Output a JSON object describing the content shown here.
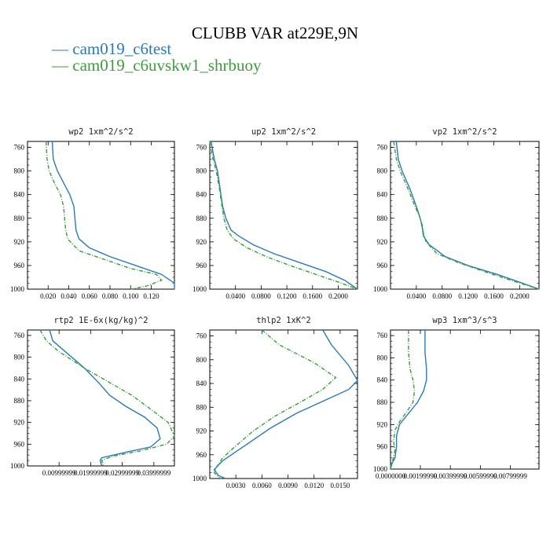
{
  "title": "CLUBB VAR at229E,9N",
  "legend": [
    {
      "label": "cam019_c6test",
      "color": "#2a7ab8"
    },
    {
      "label": "cam019_c6uvskw1_shrbuoy",
      "color": "#3a9e3a"
    }
  ],
  "chart_data": [
    {
      "type": "line",
      "title": "wp2   1xm^2/s^2",
      "y_axis": "pressure",
      "ylim": [
        1000,
        750
      ],
      "xlim": [
        0.0,
        0.1425
      ],
      "xticks": [
        0.02,
        0.04,
        0.06,
        0.08,
        0.1,
        0.12
      ],
      "xtick_labels": [
        "0.020",
        "0.040",
        "0.060",
        "0.080",
        "0.100",
        "0.120"
      ],
      "yticks": [
        760,
        800,
        840,
        880,
        920,
        960,
        1000
      ],
      "series": [
        {
          "name": "cam019_c6test",
          "points": [
            [
              0.024,
              750
            ],
            [
              0.025,
              780
            ],
            [
              0.029,
              800
            ],
            [
              0.035,
              820
            ],
            [
              0.041,
              840
            ],
            [
              0.045,
              860
            ],
            [
              0.046,
              880
            ],
            [
              0.047,
              900
            ],
            [
              0.05,
              915
            ],
            [
              0.06,
              930
            ],
            [
              0.08,
              945
            ],
            [
              0.105,
              960
            ],
            [
              0.13,
              975
            ],
            [
              0.1425,
              990
            ],
            [
              0.1425,
              1000
            ]
          ]
        },
        {
          "name": "cam019_c6uvskw1_shrbuoy",
          "points": [
            [
              0.018,
              750
            ],
            [
              0.019,
              780
            ],
            [
              0.021,
              800
            ],
            [
              0.026,
              820
            ],
            [
              0.032,
              840
            ],
            [
              0.035,
              860
            ],
            [
              0.036,
              880
            ],
            [
              0.037,
              900
            ],
            [
              0.039,
              915
            ],
            [
              0.05,
              935
            ],
            [
              0.075,
              950
            ],
            [
              0.1,
              965
            ],
            [
              0.125,
              975
            ],
            [
              0.13,
              985
            ],
            [
              0.115,
              995
            ],
            [
              0.1,
              1000
            ]
          ]
        }
      ]
    },
    {
      "type": "line",
      "title": "up2   1xm^2/s^2",
      "y_axis": "pressure",
      "ylim": [
        1000,
        750
      ],
      "xlim": [
        0.0,
        0.23
      ],
      "xticks": [
        0.04,
        0.08,
        0.12,
        0.16,
        0.2
      ],
      "xtick_labels": [
        "0.0400",
        "0.0800",
        "0.1200",
        "0.1600",
        "0.2000"
      ],
      "yticks": [
        760,
        800,
        840,
        880,
        920,
        960,
        1000
      ],
      "series": [
        {
          "name": "cam019_c6test",
          "points": [
            [
              0.002,
              750
            ],
            [
              0.007,
              780
            ],
            [
              0.012,
              800
            ],
            [
              0.016,
              830
            ],
            [
              0.02,
              860
            ],
            [
              0.025,
              880
            ],
            [
              0.033,
              900
            ],
            [
              0.045,
              910
            ],
            [
              0.068,
              925
            ],
            [
              0.1,
              940
            ],
            [
              0.14,
              955
            ],
            [
              0.18,
              970
            ],
            [
              0.21,
              985
            ],
            [
              0.23,
              1000
            ]
          ]
        },
        {
          "name": "cam019_c6uvskw1_shrbuoy",
          "points": [
            [
              0.0,
              750
            ],
            [
              0.005,
              780
            ],
            [
              0.01,
              800
            ],
            [
              0.015,
              830
            ],
            [
              0.019,
              860
            ],
            [
              0.022,
              880
            ],
            [
              0.027,
              900
            ],
            [
              0.037,
              915
            ],
            [
              0.058,
              930
            ],
            [
              0.088,
              945
            ],
            [
              0.125,
              960
            ],
            [
              0.165,
              975
            ],
            [
              0.2,
              988
            ],
            [
              0.23,
              1000
            ]
          ]
        }
      ]
    },
    {
      "type": "line",
      "title": "vp2   1xm^2/s^2",
      "y_axis": "pressure",
      "ylim": [
        1000,
        750
      ],
      "xlim": [
        0.0,
        0.23
      ],
      "xticks": [
        0.04,
        0.08,
        0.12,
        0.16,
        0.2
      ],
      "xtick_labels": [
        "0.0400",
        "0.0800",
        "0.1200",
        "0.1600",
        "0.2000"
      ],
      "yticks": [
        760,
        800,
        840,
        880,
        920,
        960,
        1000
      ],
      "series": [
        {
          "name": "cam019_c6test",
          "points": [
            [
              0.009,
              750
            ],
            [
              0.012,
              780
            ],
            [
              0.018,
              800
            ],
            [
              0.03,
              830
            ],
            [
              0.04,
              860
            ],
            [
              0.046,
              880
            ],
            [
              0.049,
              895
            ],
            [
              0.051,
              910
            ],
            [
              0.06,
              925
            ],
            [
              0.085,
              945
            ],
            [
              0.12,
              960
            ],
            [
              0.165,
              975
            ],
            [
              0.205,
              990
            ],
            [
              0.23,
              1000
            ]
          ]
        },
        {
          "name": "cam019_c6uvskw1_shrbuoy",
          "points": [
            [
              0.005,
              750
            ],
            [
              0.009,
              780
            ],
            [
              0.015,
              800
            ],
            [
              0.027,
              830
            ],
            [
              0.038,
              860
            ],
            [
              0.046,
              880
            ],
            [
              0.05,
              895
            ],
            [
              0.051,
              905
            ],
            [
              0.055,
              920
            ],
            [
              0.072,
              940
            ],
            [
              0.105,
              955
            ],
            [
              0.15,
              972
            ],
            [
              0.195,
              988
            ],
            [
              0.23,
              1000
            ]
          ]
        }
      ]
    },
    {
      "type": "line",
      "title": "rtp2   1E-6x(kg/kg)^2",
      "y_axis": "pressure",
      "ylim": [
        1000,
        750
      ],
      "xlim": [
        0.0,
        0.0465
      ],
      "xticks": [
        0.00999,
        0.01999,
        0.02999,
        0.03999
      ],
      "xtick_labels": [
        "0.00999999",
        "0.01999999",
        "0.02999999",
        "0.03999999"
      ],
      "yticks": [
        760,
        800,
        840,
        880,
        920,
        960,
        1000
      ],
      "series": [
        {
          "name": "cam019_c6test",
          "points": [
            [
              0.007,
              750
            ],
            [
              0.008,
              770
            ],
            [
              0.012,
              790
            ],
            [
              0.018,
              820
            ],
            [
              0.023,
              850
            ],
            [
              0.026,
              870
            ],
            [
              0.031,
              890
            ],
            [
              0.037,
              910
            ],
            [
              0.041,
              930
            ],
            [
              0.042,
              950
            ],
            [
              0.039,
              965
            ],
            [
              0.031,
              975
            ],
            [
              0.0235,
              985
            ],
            [
              0.023,
              990
            ],
            [
              0.0235,
              1000
            ]
          ]
        },
        {
          "name": "cam019_c6uvskw1_shrbuoy",
          "points": [
            [
              0.004,
              750
            ],
            [
              0.006,
              770
            ],
            [
              0.01,
              790
            ],
            [
              0.018,
              820
            ],
            [
              0.027,
              850
            ],
            [
              0.033,
              870
            ],
            [
              0.04,
              900
            ],
            [
              0.0445,
              920
            ],
            [
              0.0465,
              945
            ],
            [
              0.044,
              960
            ],
            [
              0.036,
              972
            ],
            [
              0.027,
              982
            ],
            [
              0.0235,
              990
            ],
            [
              0.024,
              1000
            ]
          ]
        }
      ]
    },
    {
      "type": "line",
      "title": "thlp2   1xK^2",
      "y_axis": "pressure",
      "ylim": [
        1000,
        750
      ],
      "xlim": [
        0.0,
        0.017
      ],
      "xticks": [
        0.003,
        0.006,
        0.009,
        0.012,
        0.015
      ],
      "xtick_labels": [
        "0.0030",
        "0.0060",
        "0.0090",
        "0.0120",
        "0.0150"
      ],
      "yticks": [
        760,
        800,
        840,
        880,
        920,
        960,
        1000
      ],
      "series": [
        {
          "name": "cam019_c6test",
          "points": [
            [
              0.013,
              750
            ],
            [
              0.014,
              775
            ],
            [
              0.016,
              810
            ],
            [
              0.017,
              835
            ],
            [
              0.016,
              850
            ],
            [
              0.013,
              870
            ],
            [
              0.01,
              890
            ],
            [
              0.007,
              915
            ],
            [
              0.004,
              945
            ],
            [
              0.0015,
              970
            ],
            [
              0.0005,
              985
            ],
            [
              0.001,
              995
            ],
            [
              0.0018,
              1000
            ]
          ]
        },
        {
          "name": "cam019_c6uvskw1_shrbuoy",
          "points": [
            [
              0.006,
              750
            ],
            [
              0.008,
              775
            ],
            [
              0.012,
              805
            ],
            [
              0.0145,
              830
            ],
            [
              0.013,
              850
            ],
            [
              0.01,
              875
            ],
            [
              0.0075,
              895
            ],
            [
              0.005,
              920
            ],
            [
              0.003,
              945
            ],
            [
              0.0015,
              965
            ],
            [
              0.0008,
              980
            ],
            [
              0.0005,
              990
            ],
            [
              0.0012,
              1000
            ]
          ]
        }
      ]
    },
    {
      "type": "line",
      "title": "wp3   1xm^3/s^3",
      "y_axis": "pressure",
      "ylim": [
        1000,
        750
      ],
      "xlim": [
        0.0,
        0.0099
      ],
      "xticks": [
        0.0,
        0.00199,
        0.00399,
        0.00599,
        0.00799
      ],
      "xtick_labels": [
        "0.0000000",
        "0.00199999",
        "0.00399999",
        "0.00599999",
        "0.00799999"
      ],
      "yticks": [
        760,
        800,
        840,
        880,
        920,
        960,
        1000
      ],
      "series": [
        {
          "name": "cam019_c6test",
          "points": [
            [
              0.0023,
              750
            ],
            [
              0.0023,
              790
            ],
            [
              0.0024,
              820
            ],
            [
              0.0024,
              840
            ],
            [
              0.0022,
              860
            ],
            [
              0.0018,
              880
            ],
            [
              0.0012,
              900
            ],
            [
              0.0006,
              920
            ],
            [
              0.0004,
              940
            ],
            [
              0.0004,
              960
            ],
            [
              0.0003,
              980
            ],
            [
              0.0001,
              990
            ],
            [
              0.0,
              1000
            ]
          ]
        },
        {
          "name": "cam019_c6uvskw1_shrbuoy",
          "points": [
            [
              0.0012,
              750
            ],
            [
              0.0012,
              790
            ],
            [
              0.0013,
              820
            ],
            [
              0.0015,
              840
            ],
            [
              0.0016,
              860
            ],
            [
              0.0015,
              880
            ],
            [
              0.001,
              900
            ],
            [
              0.0006,
              915
            ],
            [
              0.0003,
              930
            ],
            [
              0.0002,
              950
            ],
            [
              0.0003,
              965
            ],
            [
              0.0002,
              980
            ],
            [
              0.0,
              995
            ],
            [
              0.0,
              1000
            ]
          ]
        }
      ]
    }
  ]
}
